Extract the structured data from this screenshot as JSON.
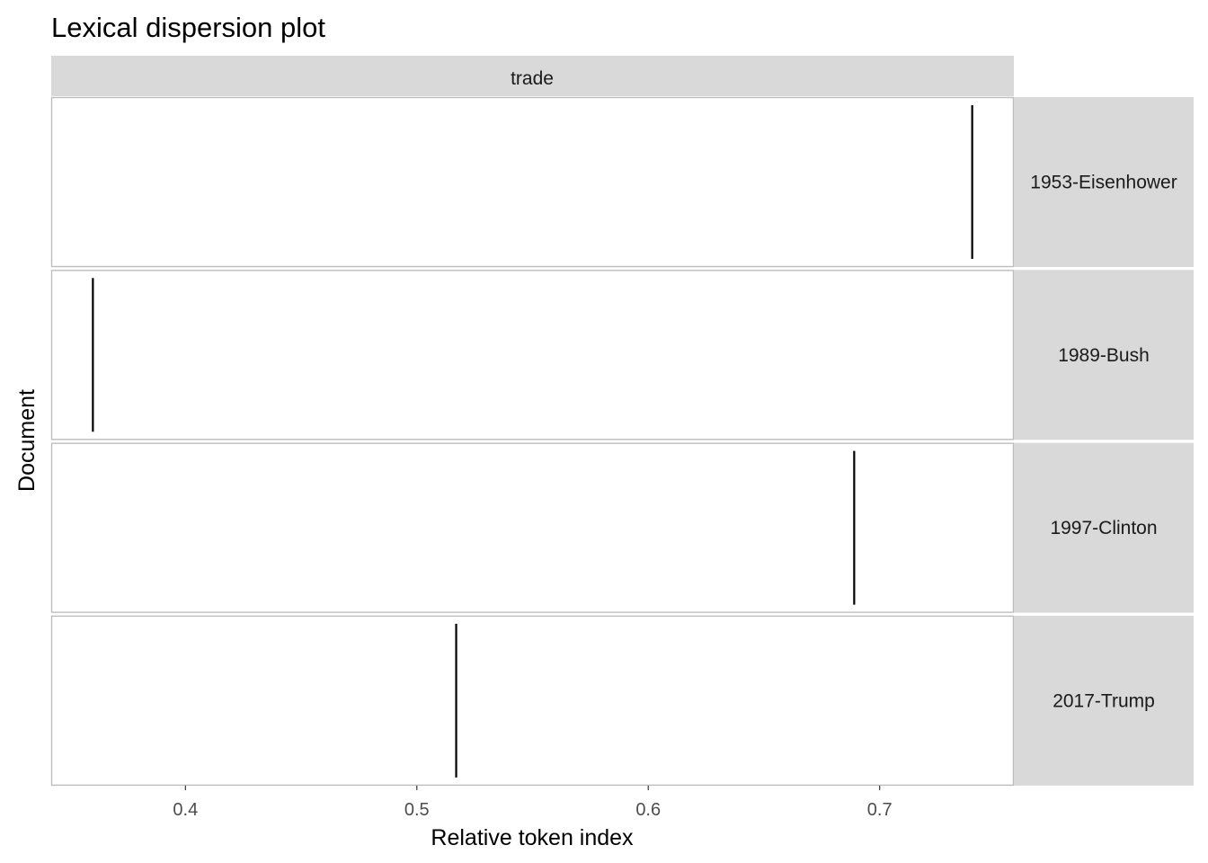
{
  "chart_data": {
    "type": "dispersion",
    "title": "Lexical dispersion plot",
    "xlabel": "Relative token index",
    "ylabel": "Document",
    "facet_column": "trade",
    "xlim": [
      0.342,
      0.758
    ],
    "xticks": [
      0.4,
      0.5,
      0.6,
      0.7
    ],
    "xtick_labels": [
      "0.4",
      "0.5",
      "0.6",
      "0.7"
    ],
    "rows": [
      {
        "document": "1953-Eisenhower",
        "positions": [
          0.74
        ]
      },
      {
        "document": "1989-Bush",
        "positions": [
          0.36
        ]
      },
      {
        "document": "1997-Clinton",
        "positions": [
          0.689
        ]
      },
      {
        "document": "2017-Trump",
        "positions": [
          0.517
        ]
      }
    ]
  }
}
